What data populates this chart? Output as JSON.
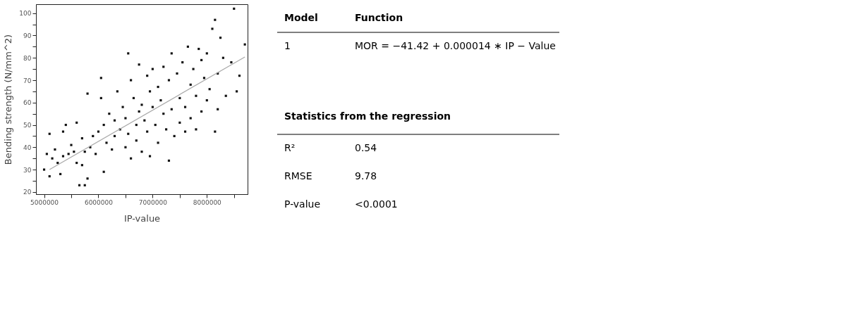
{
  "chart_data": [
    {
      "type": "scatter",
      "xlabel": "IP-value",
      "ylabel": "Bending strength (N/mm^2)",
      "grid": false,
      "xlim": [
        4850000,
        8750000
      ],
      "ylim": [
        19,
        104
      ],
      "xticks": [
        5000000,
        {
          "value": 5500000,
          "label": null
        },
        6000000,
        {
          "value": 6500000,
          "label": null
        },
        7000000,
        {
          "value": 7500000,
          "label": null
        },
        8000000,
        {
          "value": 8500000,
          "label": null
        }
      ],
      "yticks": [
        20,
        {
          "value": 25,
          "label": null
        },
        30,
        {
          "value": 35,
          "label": null
        },
        40,
        {
          "value": 45,
          "label": null
        },
        50,
        {
          "value": 55,
          "label": null
        },
        60,
        {
          "value": 65,
          "label": null
        },
        70,
        {
          "value": 75,
          "label": null
        },
        80,
        {
          "value": 85,
          "label": null
        },
        90,
        {
          "value": 95,
          "label": null
        },
        100
      ],
      "series": [
        {
          "type": "scatter",
          "marker": "square",
          "color": "#111111",
          "x": [
            5000000,
            5050000,
            5100000,
            5100000,
            5150000,
            5200000,
            5250000,
            5300000,
            5350000,
            5350000,
            5400000,
            5450000,
            5500000,
            5550000,
            5600000,
            5600000,
            5650000,
            5700000,
            5700000,
            5750000,
            5750000,
            5800000,
            5800000,
            5850000,
            5900000,
            5950000,
            6000000,
            6050000,
            6050000,
            6100000,
            6100000,
            6150000,
            6200000,
            6250000,
            6300000,
            6300000,
            6350000,
            6400000,
            6450000,
            6500000,
            6500000,
            6550000,
            6550000,
            6600000,
            6600000,
            6650000,
            6700000,
            6700000,
            6750000,
            6750000,
            6800000,
            6800000,
            6850000,
            6900000,
            6900000,
            6950000,
            6950000,
            7000000,
            7000000,
            7050000,
            7100000,
            7100000,
            7150000,
            7200000,
            7200000,
            7250000,
            7300000,
            7300000,
            7350000,
            7350000,
            7400000,
            7450000,
            7500000,
            7500000,
            7550000,
            7600000,
            7600000,
            7650000,
            7700000,
            7700000,
            7750000,
            7800000,
            7800000,
            7850000,
            7900000,
            7900000,
            7950000,
            8000000,
            8000000,
            8050000,
            8100000,
            8150000,
            8150000,
            8200000,
            8200000,
            8250000,
            8300000,
            8350000,
            8450000,
            8500000,
            8550000,
            8600000,
            8700000
          ],
          "values": [
            30,
            37,
            27,
            46,
            35,
            39,
            33,
            28,
            36,
            47,
            50,
            37,
            41,
            38,
            33,
            51,
            23,
            32,
            44,
            23,
            38,
            26,
            64,
            40,
            45,
            37,
            47,
            71,
            62,
            50,
            29,
            42,
            55,
            39,
            45,
            52,
            65,
            48,
            58,
            40,
            53,
            82,
            46,
            70,
            35,
            62,
            50,
            43,
            77,
            56,
            59,
            38,
            52,
            72,
            47,
            65,
            36,
            58,
            75,
            50,
            67,
            42,
            61,
            55,
            76,
            48,
            70,
            34,
            82,
            57,
            45,
            73,
            62,
            51,
            78,
            58,
            47,
            85,
            68,
            53,
            75,
            63,
            48,
            84,
            79,
            56,
            71,
            82,
            61,
            66,
            93,
            97,
            47,
            73,
            57,
            89,
            80,
            63,
            78,
            102,
            65,
            72,
            86
          ]
        },
        {
          "type": "line",
          "color": "#aaaaaa",
          "x": [
            5100000,
            8700000
          ],
          "values": [
            30,
            80.4
          ]
        }
      ]
    },
    {
      "type": "other",
      "annotations": [
        "Model",
        "Function",
        "1",
        "MOR = −41.42 + 0.000014 ∗ IP − Value",
        "Statistics from the regression",
        "R²",
        "0.54",
        "RMSE",
        "9.78",
        "P-value",
        "<0.0001"
      ]
    }
  ]
}
